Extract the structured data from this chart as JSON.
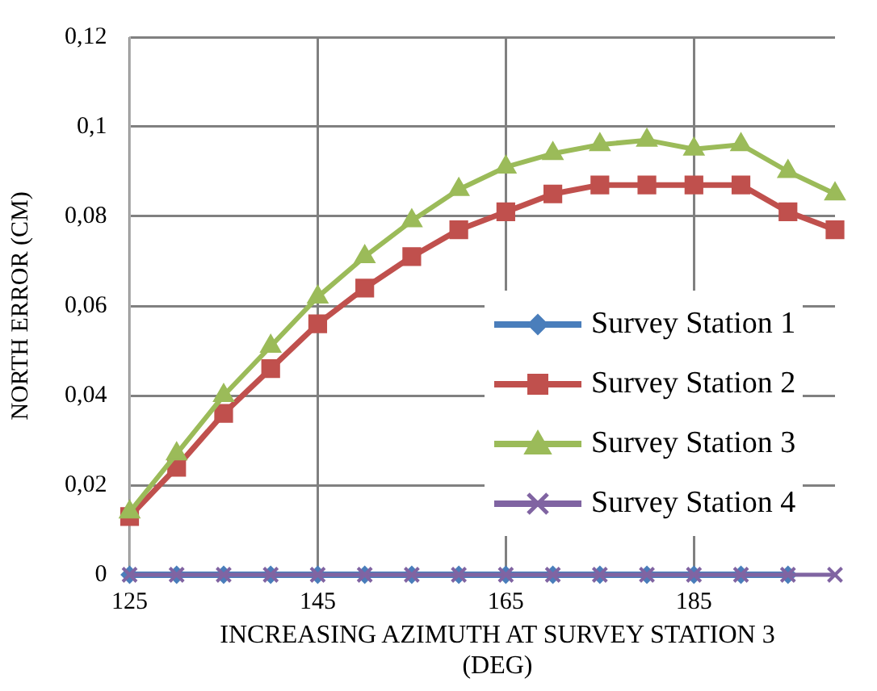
{
  "chart_data": {
    "type": "line",
    "xlabel": "INCREASING AZIMUTH AT SURVEY STATION 3 (DEG)",
    "ylabel": "NORTH ERROR (CM)",
    "xlim": [
      125,
      200
    ],
    "xticks": [
      125,
      145,
      165,
      185
    ],
    "ylim": [
      0,
      0.12
    ],
    "yticks": [
      {
        "value": 0,
        "label": "0"
      },
      {
        "value": 0.02,
        "label": "0,02"
      },
      {
        "value": 0.04,
        "label": "0,04"
      },
      {
        "value": 0.06,
        "label": "0,06"
      },
      {
        "value": 0.08,
        "label": "0,08"
      },
      {
        "value": 0.1,
        "label": "0,1"
      },
      {
        "value": 0.12,
        "label": "0,12"
      }
    ],
    "grid": true,
    "legend": "right",
    "line_style": "solid",
    "series": [
      {
        "name": "Survey Station 1",
        "color": "#4a7ebb",
        "marker": "diamond",
        "x": [
          125,
          130,
          135,
          140,
          145,
          150,
          155,
          160,
          165,
          170,
          175,
          180,
          185,
          190,
          195
        ],
        "values": [
          0,
          0,
          0,
          0,
          0,
          0,
          0,
          0,
          0,
          0,
          0,
          0,
          0,
          0,
          0
        ]
      },
      {
        "name": "Survey Station 2",
        "color": "#c0504d",
        "marker": "square",
        "x": [
          125,
          130,
          135,
          140,
          145,
          150,
          155,
          160,
          165,
          170,
          175,
          180,
          185,
          190,
          195,
          200
        ],
        "values": [
          0.013,
          0.024,
          0.036,
          0.046,
          0.056,
          0.064,
          0.071,
          0.077,
          0.081,
          0.085,
          0.087,
          0.087,
          0.087,
          0.087,
          0.081,
          0.077
        ]
      },
      {
        "name": "Survey Station 3",
        "color": "#9bbb59",
        "marker": "triangle",
        "x": [
          125,
          130,
          135,
          140,
          145,
          150,
          155,
          160,
          165,
          170,
          175,
          180,
          185,
          190,
          195,
          200
        ],
        "values": [
          0.014,
          0.027,
          0.04,
          0.051,
          0.062,
          0.071,
          0.079,
          0.086,
          0.091,
          0.094,
          0.096,
          0.097,
          0.095,
          0.096,
          0.09,
          0.085
        ]
      },
      {
        "name": "Survey Station 4",
        "color": "#8064a2",
        "marker": "cross",
        "x": [
          125,
          130,
          135,
          140,
          145,
          150,
          155,
          160,
          165,
          170,
          175,
          180,
          185,
          190,
          195,
          200
        ],
        "values": [
          0,
          0,
          0,
          0,
          0,
          0,
          0,
          0,
          0,
          0,
          0,
          0,
          0,
          0,
          0,
          0
        ]
      }
    ]
  }
}
